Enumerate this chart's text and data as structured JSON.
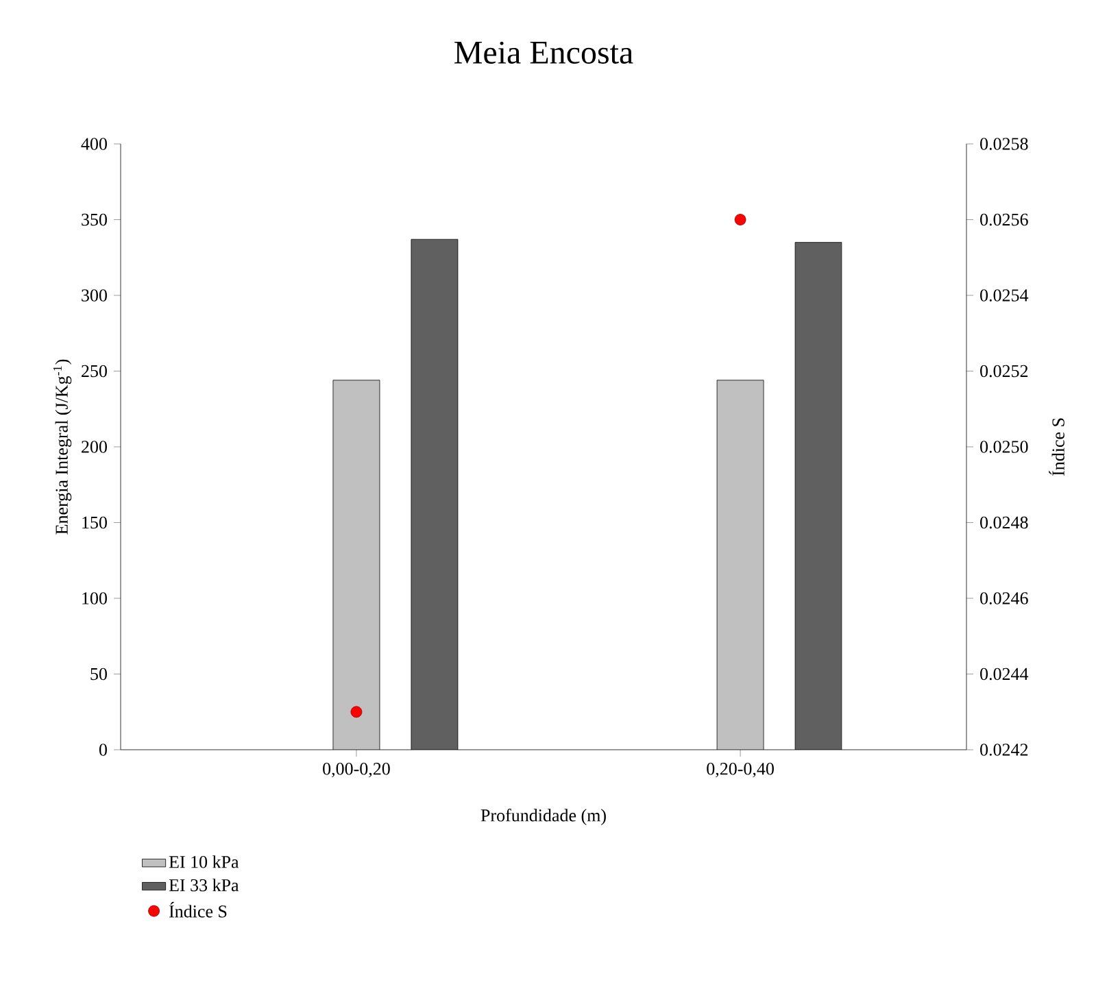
{
  "chart_data": {
    "type": "bar",
    "title": "Meia Encosta",
    "xlabel": "Profundidade (m)",
    "ylabel": "Energia Integral (J/Kg$^{-1}$)",
    "y2label": "Índice S",
    "categories": [
      "0,00-0,20",
      "0,20-0,40"
    ],
    "ylim": [
      0,
      400
    ],
    "yticks": [
      0,
      50,
      100,
      150,
      200,
      250,
      300,
      350,
      400
    ],
    "y2lim": [
      0.0242,
      0.0258
    ],
    "y2ticks": [
      0.0242,
      0.0244,
      0.0246,
      0.0248,
      {
        "value": 0.025,
        "label": "0.0250"
      },
      0.0252,
      0.0254,
      0.0256,
      0.0258
    ],
    "legend": "bottom left",
    "grid": false,
    "marker": "circle",
    "series": [
      {
        "name": "EI 10 kPa",
        "color": "#c0c0c0",
        "values": [
          244,
          244
        ]
      },
      {
        "name": "EI 33 kPa",
        "color": "#606060",
        "values": [
          337,
          335
        ]
      },
      {
        "name": "Índice S",
        "type": "scatter",
        "axis": "y2",
        "color": "#ff0000",
        "x": [
          "0,00-0,20",
          "0,20-0,40"
        ],
        "values": [
          0.0243,
          0.0256
        ]
      }
    ]
  }
}
